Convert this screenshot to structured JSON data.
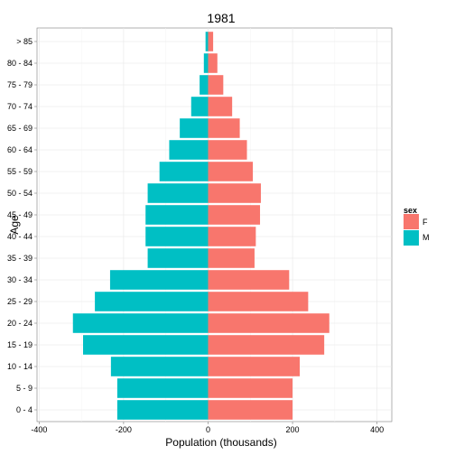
{
  "chart_data": {
    "type": "bar",
    "orientation": "horizontal",
    "title": "1981",
    "xlabel": "Population (thousands)",
    "ylabel": "Age",
    "xlim": [
      -405,
      435
    ],
    "xticks": [
      -400,
      -200,
      0,
      200,
      400
    ],
    "xtick_labels": [
      "-400",
      "-200",
      "0",
      "200",
      "400"
    ],
    "grid": true,
    "legend_position": "right",
    "legend_title": "sex",
    "categories": [
      "0 - 4",
      "5 - 9",
      "10 - 14",
      "15 - 19",
      "20 - 24",
      "25 - 29",
      "30 - 34",
      "35 - 39",
      "40 - 44",
      "45 - 49",
      "50 - 54",
      "55 - 59",
      "60 - 64",
      "65 - 69",
      "70 - 74",
      "75 - 79",
      "80 - 84",
      "> 85"
    ],
    "series": [
      {
        "name": "F",
        "color": "#F8766D",
        "values": [
          200,
          200,
          217,
          275,
          287,
          237,
          192,
          110,
          113,
          123,
          125,
          106,
          92,
          75,
          57,
          36,
          22,
          12
        ]
      },
      {
        "name": "M",
        "color": "#00BFC4",
        "values": [
          -215,
          -215,
          -230,
          -296,
          -320,
          -268,
          -232,
          -143,
          -148,
          -148,
          -143,
          -115,
          -92,
          -67,
          -40,
          -20,
          -10,
          -6
        ]
      }
    ]
  }
}
